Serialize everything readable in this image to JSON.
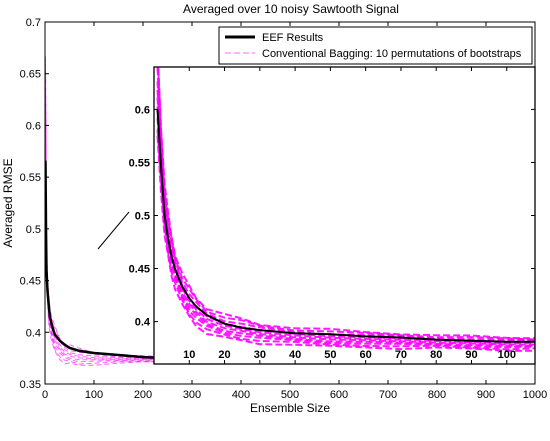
{
  "chart_data": [
    {
      "id": "main",
      "type": "line",
      "title": "Averaged  over 10 noisy Sawtooth Signal",
      "xlabel": "Ensemble Size",
      "ylabel": "Averaged RMSE",
      "xlim": [
        0,
        1000
      ],
      "ylim": [
        0.35,
        0.7
      ],
      "xticks": [
        0,
        100,
        200,
        300,
        400,
        500,
        600,
        700,
        800,
        900,
        1000
      ],
      "yticks": [
        0.35,
        0.4,
        0.45,
        0.5,
        0.55,
        0.6,
        0.65,
        0.7
      ],
      "ytick_labels": [
        "0.35",
        "0.4",
        "0.45",
        "0.5",
        "0.55",
        "0.6",
        "0.65",
        "0.7"
      ],
      "legend_position": "top-right",
      "series": [
        {
          "name": "EEF Results",
          "style": "solid",
          "color": "#000000",
          "x": [
            1,
            2,
            3,
            5,
            8,
            10,
            15,
            20,
            30,
            40,
            50,
            70,
            100,
            150,
            200,
            300,
            400,
            500,
            600,
            700,
            800,
            900,
            1000
          ],
          "y": [
            0.566,
            0.5,
            0.46,
            0.44,
            0.425,
            0.415,
            0.405,
            0.398,
            0.392,
            0.388,
            0.385,
            0.382,
            0.38,
            0.378,
            0.376,
            0.374,
            0.373,
            0.373,
            0.373,
            0.373,
            0.373,
            0.372,
            0.372
          ]
        },
        {
          "name": "Conventional Bagging: 10 permutations of bootstraps",
          "style": "dashed",
          "color": "#ff00ff",
          "x": [
            1,
            2,
            3,
            5,
            8,
            10,
            15,
            20,
            30,
            40,
            50,
            70,
            100,
            150,
            200,
            300,
            400,
            500,
            600,
            700,
            800,
            900,
            1000
          ],
          "y": [
            0.635,
            0.52,
            0.47,
            0.44,
            0.42,
            0.412,
            0.4,
            0.393,
            0.385,
            0.38,
            0.378,
            0.376,
            0.375,
            0.374,
            0.374,
            0.373,
            0.373,
            0.373,
            0.372,
            0.372,
            0.372,
            0.372,
            0.372
          ],
          "y_spread": [
            0.03,
            0.02,
            0.015,
            0.012,
            0.012,
            0.012,
            0.012,
            0.012,
            0.01,
            0.01,
            0.009,
            0.008,
            0.006,
            0.004,
            0.003,
            0.002,
            0.002,
            0.002,
            0.002,
            0.002,
            0.002,
            0.002,
            0.002
          ]
        }
      ]
    },
    {
      "id": "inset",
      "type": "line",
      "title": "",
      "xlim": [
        0,
        108
      ],
      "ylim": [
        0.36,
        0.64
      ],
      "xticks": [
        10,
        20,
        30,
        40,
        50,
        60,
        70,
        80,
        90,
        100
      ],
      "yticks": [
        0.4,
        0.45,
        0.5,
        0.55,
        0.6
      ],
      "ytick_labels": [
        "0.4",
        "0.45",
        "0.5",
        "0.55",
        "0.6"
      ],
      "series": [
        {
          "name": "EEF Results",
          "style": "solid",
          "color": "#000000",
          "x": [
            1,
            2,
            3,
            4,
            5,
            6,
            8,
            10,
            12,
            15,
            20,
            25,
            30,
            40,
            50,
            60,
            70,
            80,
            90,
            100,
            108
          ],
          "y": [
            0.6,
            0.545,
            0.5,
            0.478,
            0.461,
            0.449,
            0.433,
            0.422,
            0.414,
            0.406,
            0.398,
            0.394,
            0.392,
            0.389,
            0.388,
            0.386,
            0.385,
            0.383,
            0.382,
            0.381,
            0.381
          ]
        },
        {
          "name": "Conventional Bagging: 10 permutations of bootstraps",
          "style": "dashed",
          "color": "#ff00ff",
          "x": [
            1,
            2,
            3,
            4,
            5,
            6,
            8,
            10,
            12,
            15,
            20,
            25,
            30,
            40,
            50,
            60,
            70,
            80,
            90,
            100,
            108
          ],
          "y": [
            0.615,
            0.555,
            0.505,
            0.48,
            0.462,
            0.448,
            0.43,
            0.418,
            0.41,
            0.401,
            0.395,
            0.392,
            0.389,
            0.386,
            0.384,
            0.383,
            0.382,
            0.381,
            0.38,
            0.379,
            0.379
          ],
          "y_spread": [
            0.04,
            0.03,
            0.025,
            0.02,
            0.018,
            0.016,
            0.015,
            0.014,
            0.013,
            0.012,
            0.011,
            0.01,
            0.009,
            0.008,
            0.008,
            0.007,
            0.007,
            0.006,
            0.006,
            0.006,
            0.006
          ]
        }
      ]
    }
  ]
}
